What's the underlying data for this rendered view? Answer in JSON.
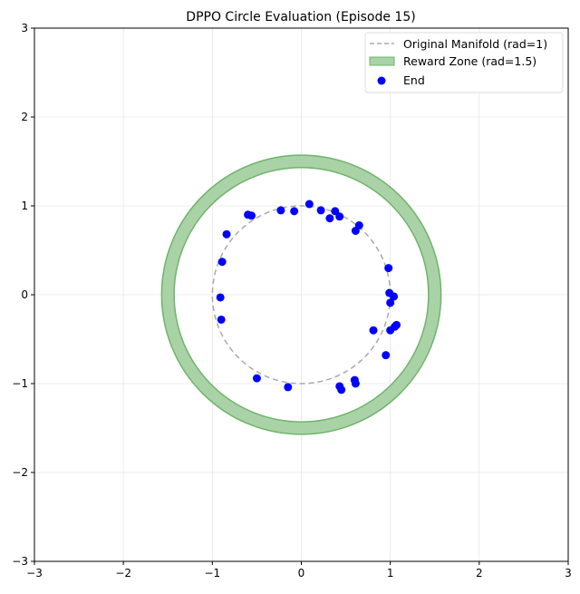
{
  "chart_data": {
    "type": "scatter",
    "title": "DPPO Circle Evaluation (Episode 15)",
    "xlabel": "",
    "ylabel": "",
    "xlim": [
      -3,
      3
    ],
    "ylim": [
      -3,
      3
    ],
    "xticks": [
      -3,
      -2,
      -1,
      0,
      1,
      2,
      3
    ],
    "yticks": [
      -3,
      -2,
      -1,
      0,
      1,
      2,
      3
    ],
    "grid": true,
    "legend_placement": "top-right",
    "manifold": {
      "name": "Original Manifold (rad=1)",
      "radius": 1,
      "color": "#aaaaaa",
      "style": "dashed"
    },
    "reward_zone": {
      "name": "Reward Zone (rad=1.5)",
      "inner_radius": 1.43,
      "outer_radius": 1.57,
      "fill": "#a9d3a6",
      "edge": "#6fb46a"
    },
    "series": [
      {
        "name": "End",
        "color": "#0000ff",
        "points": [
          [
            0.09,
            1.02
          ],
          [
            -0.23,
            0.95
          ],
          [
            -0.08,
            0.94
          ],
          [
            -0.6,
            0.9
          ],
          [
            -0.56,
            0.89
          ],
          [
            0.22,
            0.95
          ],
          [
            0.38,
            0.94
          ],
          [
            0.32,
            0.86
          ],
          [
            0.43,
            0.88
          ],
          [
            0.65,
            0.78
          ],
          [
            0.61,
            0.72
          ],
          [
            -0.84,
            0.68
          ],
          [
            -0.89,
            0.37
          ],
          [
            0.98,
            0.3
          ],
          [
            -0.91,
            -0.03
          ],
          [
            -0.9,
            -0.28
          ],
          [
            0.99,
            0.02
          ],
          [
            1.04,
            -0.02
          ],
          [
            1.0,
            -0.09
          ],
          [
            0.81,
            -0.4
          ],
          [
            1.0,
            -0.4
          ],
          [
            1.07,
            -0.34
          ],
          [
            1.05,
            -0.36
          ],
          [
            0.95,
            -0.68
          ],
          [
            -0.5,
            -0.94
          ],
          [
            -0.15,
            -1.04
          ],
          [
            0.43,
            -1.03
          ],
          [
            0.45,
            -1.07
          ],
          [
            0.6,
            -0.96
          ],
          [
            0.61,
            -1.0
          ]
        ]
      }
    ]
  }
}
